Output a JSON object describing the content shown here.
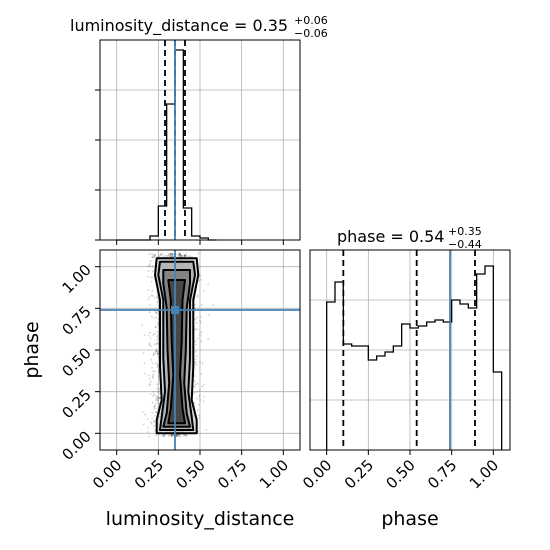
{
  "chart_data": {
    "type": "corner",
    "parameters": [
      "luminosity_distance",
      "phase"
    ],
    "truth_color": "#4682b4",
    "truths": {
      "luminosity_distance": 0.35,
      "phase": 0.74
    },
    "grid": true,
    "panels": [
      {
        "id": "hist_luminosity_distance",
        "type": "histogram",
        "title": {
          "base": "luminosity_distance = 0.35",
          "upper": "+0.06",
          "lower": "−0.06"
        },
        "xlim": [
          -0.1,
          1.1
        ],
        "ylim": [
          0,
          1.0
        ],
        "bin_edges": [
          0.0,
          0.05,
          0.1,
          0.15,
          0.2,
          0.25,
          0.3,
          0.35,
          0.4,
          0.45,
          0.5,
          0.55,
          0.6
        ],
        "counts": [
          0.0,
          0.0,
          0.0,
          0.0,
          0.02,
          0.17,
          0.68,
          0.95,
          0.16,
          0.02,
          0.01,
          0.0
        ],
        "quantiles": [
          0.29,
          0.35,
          0.41
        ],
        "truth": 0.35
      },
      {
        "id": "hist_phase",
        "type": "histogram",
        "title": {
          "base": "phase = 0.54",
          "upper": "+0.35",
          "lower": "−0.44"
        },
        "xlim": [
          -0.1,
          1.1
        ],
        "ylim": [
          0,
          1.0
        ],
        "bin_edges": [
          0.0,
          0.05,
          0.1,
          0.15,
          0.2,
          0.25,
          0.3,
          0.35,
          0.4,
          0.45,
          0.5,
          0.55,
          0.6,
          0.65,
          0.7,
          0.75,
          0.8,
          0.85,
          0.9,
          0.95,
          1.0,
          1.05
        ],
        "counts": [
          0.74,
          0.84,
          0.53,
          0.52,
          0.52,
          0.45,
          0.47,
          0.49,
          0.52,
          0.63,
          0.61,
          0.62,
          0.64,
          0.65,
          0.64,
          0.75,
          0.73,
          0.71,
          0.88,
          0.92,
          0.39
        ],
        "quantiles": [
          0.1,
          0.54,
          0.89
        ],
        "truth": 0.74
      },
      {
        "id": "joint",
        "type": "contour",
        "x_param": "luminosity_distance",
        "y_param": "phase",
        "xlim": [
          -0.1,
          1.1
        ],
        "ylim": [
          -0.1,
          1.1
        ],
        "points": {
          "count": 3000,
          "x_center": 0.35,
          "x_std": 0.06,
          "y_range": [
            -0.02,
            1.08
          ]
        },
        "contour_half_widths": [
          {
            "y": [
              0.0,
              0.08,
              0.2,
              0.4,
              0.6,
              0.8,
              0.95,
              1.05
            ],
            "w": [
              0.12,
              0.12,
              0.09,
              0.1,
              0.1,
              0.1,
              0.13,
              0.12
            ]
          },
          {
            "y": [
              0.02,
              0.1,
              0.25,
              0.45,
              0.6,
              0.8,
              0.95,
              1.03
            ],
            "w": [
              0.1,
              0.09,
              0.07,
              0.08,
              0.08,
              0.08,
              0.11,
              0.1
            ]
          },
          {
            "y": [
              0.04,
              0.12,
              0.3,
              0.5,
              0.75,
              0.9,
              0.98
            ],
            "w": [
              0.08,
              0.06,
              0.045,
              0.055,
              0.06,
              0.08,
              0.08
            ]
          },
          {
            "y": [
              0.06,
              0.15,
              0.35,
              0.55,
              0.8,
              0.92
            ],
            "w": [
              0.05,
              0.035,
              0.02,
              0.03,
              0.035,
              0.05
            ]
          }
        ]
      }
    ],
    "tick_labels": [
      "0.00",
      "0.25",
      "0.50",
      "0.75",
      "1.00"
    ],
    "tick_values": [
      0.0,
      0.25,
      0.5,
      0.75,
      1.0
    ],
    "xlabel_left": "luminosity_distance",
    "xlabel_right": "phase",
    "ylabel_bottom": "phase"
  }
}
